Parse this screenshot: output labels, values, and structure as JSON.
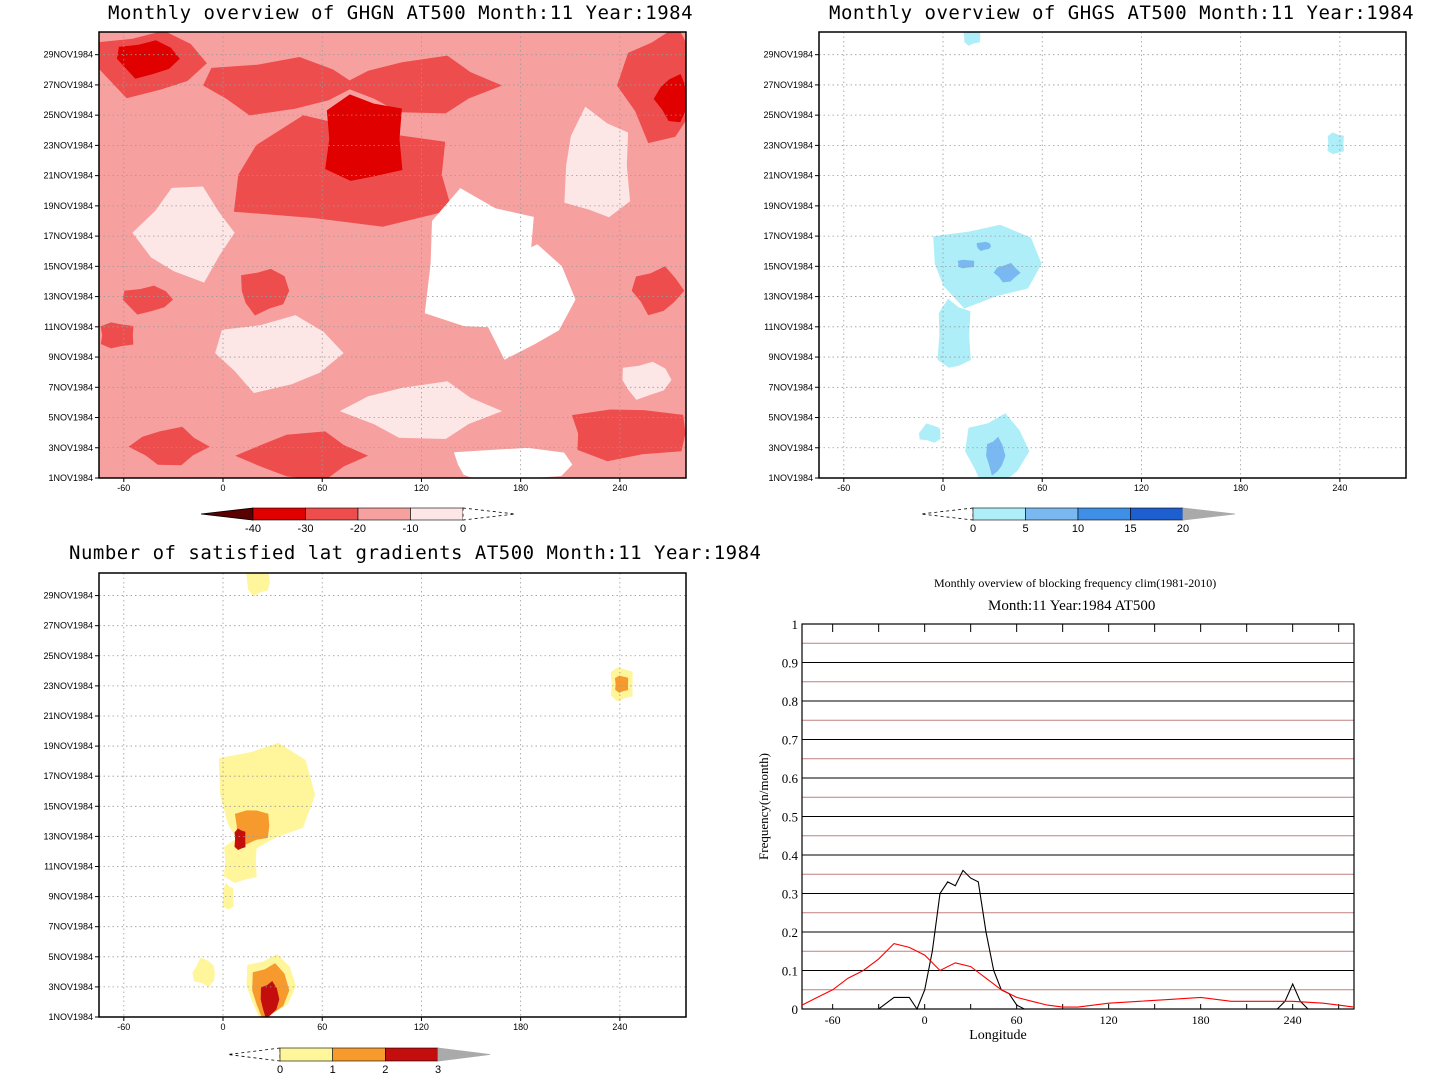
{
  "panels": [
    {
      "id": "ghgn",
      "title": "Monthly overview of GHGN AT500 Month:11 Year:1984",
      "colorbar": {
        "labels": [
          "-40",
          "-30",
          "-20",
          "-10",
          "0"
        ],
        "colors": [
          "#5a0000",
          "#e00000",
          "#ee4d4d",
          "#f7a0a0",
          "#fde6e6"
        ]
      }
    },
    {
      "id": "ghgs",
      "title": "Monthly overview of GHGS AT500 Month:11 Year:1984",
      "colorbar": {
        "labels": [
          "0",
          "5",
          "10",
          "15",
          "20"
        ],
        "colors": [
          "#aeeef8",
          "#79b8f0",
          "#3e8fe6",
          "#1e5fd0",
          "#aaaaaa"
        ]
      }
    },
    {
      "id": "gradients",
      "title": "Number of satisfied lat gradients AT500 Month:11 Year:1984",
      "colorbar": {
        "labels": [
          "0",
          "1",
          "2",
          "3"
        ],
        "colors": [
          "#fff59b",
          "#f79a2e",
          "#c40d0d",
          "#aaaaaa"
        ]
      }
    }
  ],
  "date_axis": {
    "labels": [
      "1NOV1984",
      "3NOV1984",
      "5NOV1984",
      "7NOV1984",
      "9NOV1984",
      "11NOV1984",
      "13NOV1984",
      "15NOV1984",
      "17NOV1984",
      "19NOV1984",
      "21NOV1984",
      "23NOV1984",
      "25NOV1984",
      "27NOV1984",
      "29NOV1984"
    ]
  },
  "lon_axis": {
    "labels": [
      "-60",
      "0",
      "60",
      "120",
      "180",
      "240"
    ]
  },
  "line_chart": {
    "title1": "Monthly overview of blocking frequency clim(1981-2010)",
    "title2": "Month:11 Year:1984  AT500",
    "xlabel": "Longitude",
    "ylabel": "Frequency(n/month)",
    "yticks": [
      "0",
      "0.1",
      "0.2",
      "0.3",
      "0.4",
      "0.5",
      "0.6",
      "0.7",
      "0.8",
      "0.9",
      "1"
    ],
    "xticks": [
      "-60",
      "0",
      "60",
      "120",
      "180",
      "240"
    ]
  },
  "chart_data": [
    {
      "type": "heatmap",
      "title": "Monthly overview of GHGN AT500 Month:11 Year:1984",
      "x_range": [
        -75,
        280
      ],
      "y_range": [
        "1NOV1984",
        "30NOV1984"
      ],
      "levels": [
        -40,
        -30,
        -20,
        -10,
        0
      ],
      "colors": [
        "#5a0000",
        "#e00000",
        "#ee4d4d",
        "#f7a0a0",
        "#fde6e6"
      ]
    },
    {
      "type": "heatmap",
      "title": "Monthly overview of GHGS AT500 Month:11 Year:1984",
      "x_range": [
        -75,
        280
      ],
      "y_range": [
        "1NOV1984",
        "30NOV1984"
      ],
      "levels": [
        0,
        5,
        10,
        15,
        20
      ]
    },
    {
      "type": "heatmap",
      "title": "Number of satisfied lat gradients AT500 Month:11 Year:1984",
      "x_range": [
        -75,
        280
      ],
      "y_range": [
        "1NOV1984",
        "30NOV1984"
      ],
      "levels": [
        0,
        1,
        2,
        3
      ]
    },
    {
      "type": "line",
      "title": "Monthly overview of blocking frequency clim(1981-2010)",
      "subtitle": "Month:11 Year:1984  AT500",
      "xlabel": "Longitude",
      "ylabel": "Frequency(n/month)",
      "xlim": [
        -80,
        280
      ],
      "ylim": [
        0,
        1
      ],
      "series": [
        {
          "color": "#000000",
          "x": [
            -80,
            -30,
            -20,
            -10,
            -5,
            0,
            5,
            10,
            15,
            20,
            25,
            30,
            35,
            40,
            45,
            50,
            55,
            60,
            65,
            200,
            230,
            235,
            240,
            245,
            250,
            280
          ],
          "y": [
            0,
            0,
            0.03,
            0.03,
            0,
            0.05,
            0.15,
            0.3,
            0.33,
            0.32,
            0.36,
            0.34,
            0.33,
            0.2,
            0.1,
            0.05,
            0.04,
            0.01,
            0,
            0,
            0,
            0.02,
            0.065,
            0.02,
            0,
            0
          ]
        },
        {
          "color": "#ff0000",
          "x": [
            -80,
            -70,
            -60,
            -50,
            -40,
            -30,
            -20,
            -10,
            0,
            10,
            20,
            30,
            40,
            50,
            60,
            70,
            80,
            90,
            100,
            120,
            140,
            160,
            180,
            200,
            220,
            240,
            260,
            280
          ],
          "y": [
            0.01,
            0.03,
            0.05,
            0.08,
            0.1,
            0.13,
            0.17,
            0.16,
            0.14,
            0.1,
            0.12,
            0.11,
            0.08,
            0.05,
            0.03,
            0.02,
            0.01,
            0.005,
            0.005,
            0.015,
            0.02,
            0.025,
            0.03,
            0.02,
            0.02,
            0.02,
            0.015,
            0.005
          ]
        }
      ]
    }
  ]
}
